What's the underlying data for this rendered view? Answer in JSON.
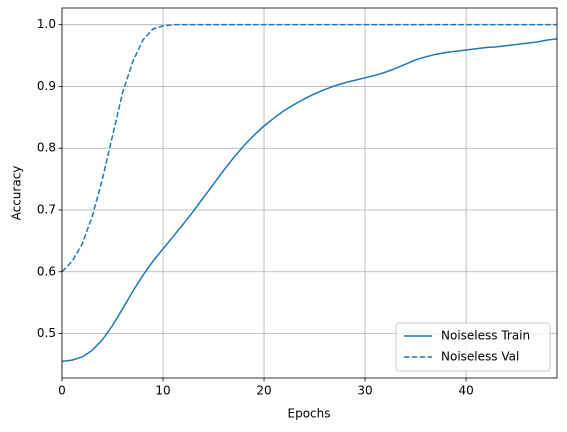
{
  "chart_data": {
    "type": "line",
    "xlabel": "Epochs",
    "ylabel": "Accuracy",
    "x": [
      0,
      1,
      2,
      3,
      4,
      5,
      6,
      7,
      8,
      9,
      10,
      11,
      12,
      13,
      14,
      15,
      16,
      17,
      18,
      19,
      20,
      21,
      22,
      23,
      24,
      25,
      26,
      27,
      28,
      29,
      30,
      31,
      32,
      33,
      34,
      35,
      36,
      37,
      38,
      39,
      40,
      41,
      42,
      43,
      44,
      45,
      46,
      47,
      48,
      49
    ],
    "series": [
      {
        "name": "Noiseless Train",
        "color": "#1f77b4",
        "linestyle": "solid",
        "values": [
          0.455,
          0.457,
          0.462,
          0.473,
          0.49,
          0.513,
          0.54,
          0.568,
          0.594,
          0.617,
          0.637,
          0.657,
          0.677,
          0.698,
          0.72,
          0.742,
          0.764,
          0.785,
          0.804,
          0.821,
          0.836,
          0.849,
          0.861,
          0.871,
          0.88,
          0.888,
          0.895,
          0.901,
          0.906,
          0.91,
          0.914,
          0.918,
          0.923,
          0.929,
          0.936,
          0.943,
          0.948,
          0.952,
          0.955,
          0.957,
          0.959,
          0.961,
          0.963,
          0.964,
          0.966,
          0.968,
          0.97,
          0.972,
          0.975,
          0.977
        ]
      },
      {
        "name": "Noiseless Val",
        "color": "#1f77b4",
        "linestyle": "dashed",
        "values": [
          0.6,
          0.617,
          0.645,
          0.69,
          0.75,
          0.82,
          0.89,
          0.94,
          0.975,
          0.993,
          0.998,
          1.0,
          1.0,
          1.0,
          1.0,
          1.0,
          1.0,
          1.0,
          1.0,
          1.0,
          1.0,
          1.0,
          1.0,
          1.0,
          1.0,
          1.0,
          1.0,
          1.0,
          1.0,
          1.0,
          1.0,
          1.0,
          1.0,
          1.0,
          1.0,
          1.0,
          1.0,
          1.0,
          1.0,
          1.0,
          1.0,
          1.0,
          1.0,
          1.0,
          1.0,
          1.0,
          1.0,
          1.0,
          1.0,
          1.0
        ]
      }
    ],
    "xlim": [
      0,
      49
    ],
    "xticks": [
      0,
      10,
      20,
      30,
      40
    ],
    "ylim": [
      0.428,
      1.027
    ],
    "yticks": [
      0.5,
      0.6,
      0.7,
      0.8,
      0.9,
      {
        "value": 1,
        "label": "1.0"
      }
    ],
    "grid": true,
    "legend": "lower right"
  }
}
